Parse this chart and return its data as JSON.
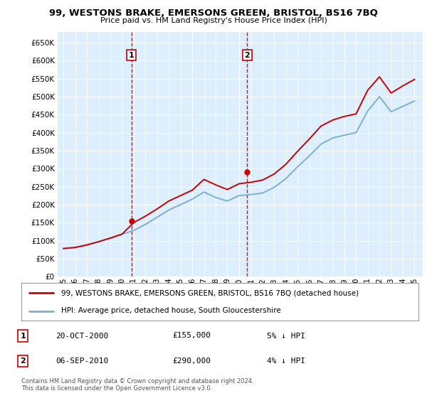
{
  "title": "99, WESTONS BRAKE, EMERSONS GREEN, BRISTOL, BS16 7BQ",
  "subtitle": "Price paid vs. HM Land Registry's House Price Index (HPI)",
  "years": [
    1995,
    1996,
    1997,
    1998,
    1999,
    2000,
    2001,
    2002,
    2003,
    2004,
    2005,
    2006,
    2007,
    2008,
    2009,
    2010,
    2011,
    2012,
    2013,
    2014,
    2015,
    2016,
    2017,
    2018,
    2019,
    2020,
    2021,
    2022,
    2023,
    2024,
    2025
  ],
  "hpi_values": [
    78000,
    81000,
    88000,
    97000,
    107000,
    118000,
    128000,
    145000,
    165000,
    185000,
    200000,
    215000,
    235000,
    220000,
    210000,
    225000,
    228000,
    232000,
    248000,
    272000,
    305000,
    335000,
    368000,
    385000,
    393000,
    400000,
    460000,
    500000,
    458000,
    473000,
    488000
  ],
  "property_values": [
    78000,
    81000,
    88000,
    97000,
    107000,
    118000,
    150000,
    168000,
    188000,
    210000,
    225000,
    240000,
    270000,
    255000,
    242000,
    258000,
    262000,
    268000,
    285000,
    312000,
    348000,
    382000,
    418000,
    435000,
    445000,
    452000,
    518000,
    555000,
    510000,
    530000,
    548000
  ],
  "sale1_year": 2000.8,
  "sale1_value": 155000,
  "sale1_label": "1",
  "sale2_year": 2010.7,
  "sale2_value": 290000,
  "sale2_label": "2",
  "ylim": [
    0,
    680000
  ],
  "yticks": [
    0,
    50000,
    100000,
    150000,
    200000,
    250000,
    300000,
    350000,
    400000,
    450000,
    500000,
    550000,
    600000,
    650000
  ],
  "property_color": "#cc0000",
  "hpi_color": "#7ab0d4",
  "dashed_color": "#cc0000",
  "background_plot": "#ddeeff",
  "grid_color": "#ffffff",
  "legend_label_property": "99, WESTONS BRAKE, EMERSONS GREEN, BRISTOL, BS16 7BQ (detached house)",
  "legend_label_hpi": "HPI: Average price, detached house, South Gloucestershire",
  "annotation1_date": "20-OCT-2000",
  "annotation1_price": "£155,000",
  "annotation1_hpi": "5% ↓ HPI",
  "annotation2_date": "06-SEP-2010",
  "annotation2_price": "£290,000",
  "annotation2_hpi": "4% ↓ HPI",
  "footer": "Contains HM Land Registry data © Crown copyright and database right 2024.\nThis data is licensed under the Open Government Licence v3.0.",
  "xlim_min": 1994.5,
  "xlim_max": 2025.7
}
